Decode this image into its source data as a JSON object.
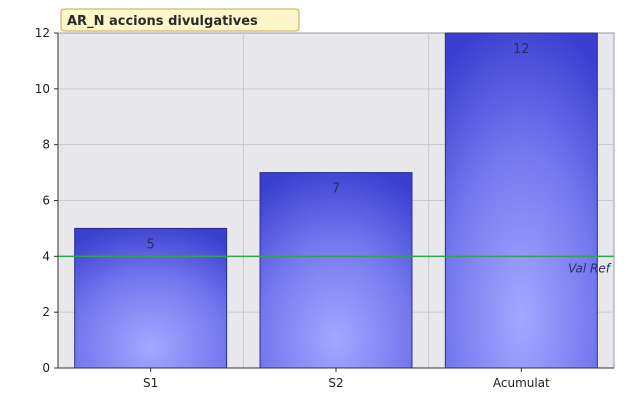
{
  "chart_data": {
    "type": "bar",
    "title": "AR_N accions divulgatives",
    "categories": [
      "S1",
      "S2",
      "Acumulat"
    ],
    "values": [
      5,
      7,
      12
    ],
    "data_labels": [
      "5",
      "7",
      "12"
    ],
    "ylim": [
      0,
      12
    ],
    "yticks": [
      0,
      2,
      4,
      6,
      8,
      10,
      12
    ],
    "grid": true,
    "reference_line": {
      "label": "Val Ref",
      "value": 4,
      "color": "#2aa84a"
    },
    "colors": {
      "bar_dark": "#3a3fd0",
      "bar_light": "#a3a8ff",
      "plot_background": "#e8e8ec",
      "gridline": "#c9c9d2",
      "title_background": "#fff7cc",
      "title_border": "#c9a34a"
    }
  }
}
